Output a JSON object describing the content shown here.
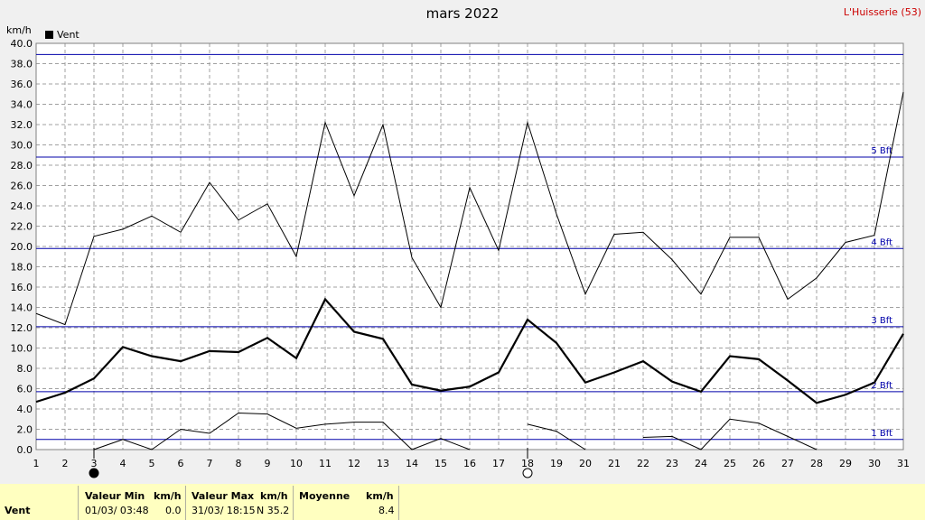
{
  "header": {
    "title": "mars 2022",
    "station": "L'Huisserie (53)",
    "y_unit": "km/h",
    "legend_label": "Vent"
  },
  "chart_data": {
    "type": "line",
    "title": "mars 2022",
    "ylabel": "km/h",
    "xlabel": "",
    "ylim": [
      0,
      40
    ],
    "y_ticks": [
      "0.0",
      "2.0",
      "4.0",
      "6.0",
      "8.0",
      "10.0",
      "12.0",
      "14.0",
      "16.0",
      "18.0",
      "20.0",
      "22.0",
      "24.0",
      "26.0",
      "28.0",
      "30.0",
      "32.0",
      "34.0",
      "36.0",
      "38.0",
      "40.0"
    ],
    "x": [
      1,
      2,
      3,
      4,
      5,
      6,
      7,
      8,
      9,
      10,
      11,
      12,
      13,
      14,
      15,
      16,
      17,
      18,
      19,
      20,
      21,
      22,
      23,
      24,
      25,
      26,
      27,
      28,
      29,
      30,
      31
    ],
    "grid": true,
    "legend": "top-left",
    "series": [
      {
        "name": "Vent",
        "role": "max",
        "color": "#000000",
        "values": [
          13.4,
          12.3,
          21.0,
          21.7,
          23.0,
          21.4,
          26.3,
          22.6,
          24.2,
          19.0,
          32.2,
          25.0,
          32.0,
          18.9,
          14.0,
          25.8,
          19.6,
          32.2,
          23.2,
          15.3,
          21.2,
          21.4,
          18.7,
          15.3,
          20.9,
          20.9,
          14.8,
          16.9,
          20.4,
          21.1,
          35.2
        ]
      },
      {
        "name": "Vent",
        "role": "mean",
        "color": "#000000",
        "values": [
          4.7,
          5.6,
          7.0,
          10.1,
          9.2,
          8.7,
          9.7,
          9.6,
          11.0,
          9.0,
          14.8,
          11.6,
          10.9,
          6.4,
          5.8,
          6.2,
          7.6,
          12.8,
          10.5,
          6.6,
          7.6,
          8.7,
          6.7,
          5.7,
          9.2,
          8.9,
          6.8,
          4.6,
          5.4,
          6.6,
          11.4
        ]
      },
      {
        "name": "Vent",
        "role": "min",
        "color": "#000000",
        "values": [
          null,
          null,
          0.0,
          1.0,
          0.0,
          2.0,
          1.6,
          3.6,
          3.5,
          2.1,
          2.5,
          2.7,
          2.7,
          0.0,
          1.1,
          0.0,
          null,
          2.5,
          1.8,
          0.0,
          null,
          1.2,
          1.3,
          0.0,
          3.0,
          2.6,
          1.3,
          0.0,
          null,
          null,
          null
        ]
      }
    ],
    "reference_lines": [
      {
        "value": 1.0,
        "label": "1 Bft"
      },
      {
        "value": 5.7,
        "label": "2 Bft"
      },
      {
        "value": 12.1,
        "label": "3 Bft"
      },
      {
        "value": 19.8,
        "label": "4 Bft"
      },
      {
        "value": 28.8,
        "label": "5 Bft"
      },
      {
        "value": 38.9,
        "label": ""
      }
    ],
    "markers": [
      {
        "day": 3,
        "symbol": "full-moon"
      },
      {
        "day": 18,
        "symbol": "new-moon"
      }
    ],
    "colors": {
      "plot_bg": "#ffffff",
      "grid": "#a0a0a0",
      "reference": "#0000aa",
      "stats_bg": "#ffffc0",
      "station": "#cc0000"
    }
  },
  "stats": {
    "row_label": "Vent",
    "min_header": "Valeur Min",
    "min_unit": "km/h",
    "min_datetime": "01/03/  03:48",
    "min_value": "0.0",
    "max_header": "Valeur Max",
    "max_unit": "km/h",
    "max_datetime": "31/03/  18:15",
    "max_dir_value": "N 35.2",
    "mean_header": "Moyenne",
    "mean_unit": "km/h",
    "mean_value": "8.4"
  }
}
